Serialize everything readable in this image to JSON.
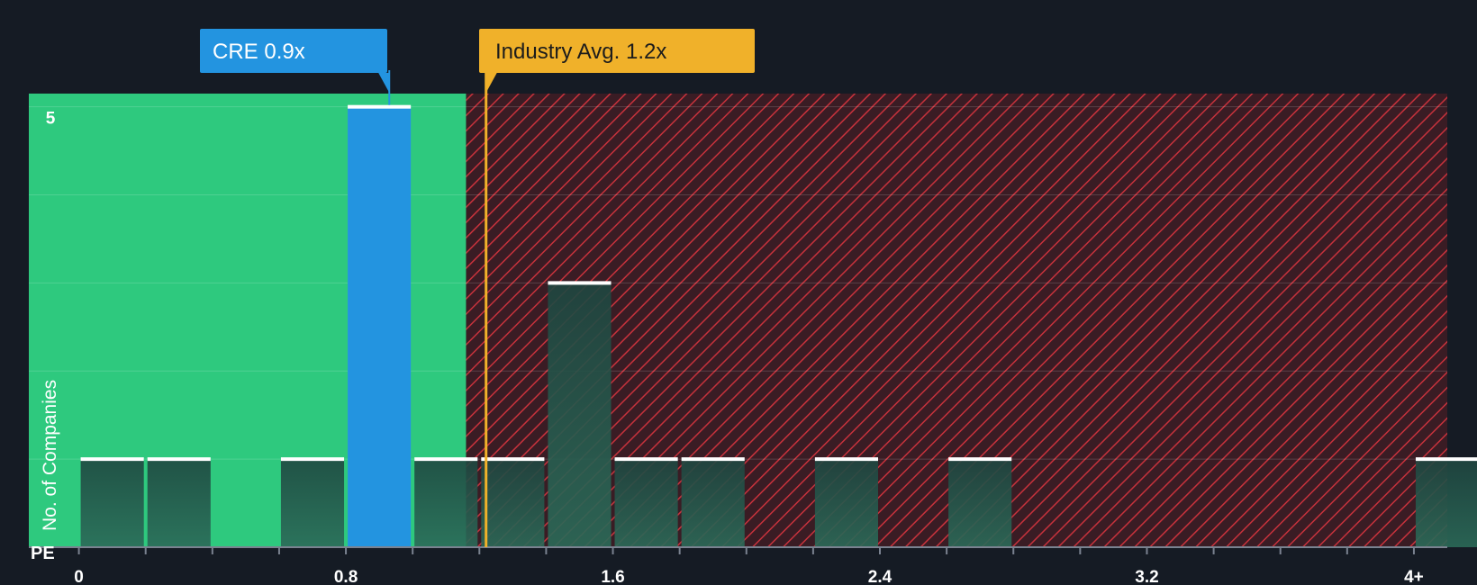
{
  "chart_data": {
    "type": "bar",
    "xlabel": "PE",
    "ylabel": "No. of Companies",
    "x_tick_labels": [
      "0",
      "0.8",
      "1.6",
      "2.4",
      "3.2",
      "4+"
    ],
    "x_tick_values": [
      0,
      0.8,
      1.6,
      2.4,
      3.2,
      4
    ],
    "y_tick_labels": [
      "5"
    ],
    "y_tick_values": [
      5
    ],
    "xlim": [
      -0.15,
      4.1
    ],
    "ylim": [
      0,
      5.15
    ],
    "bin_width": 0.2,
    "bars": [
      {
        "x": 0.0,
        "value": 1,
        "highlight": false
      },
      {
        "x": 0.2,
        "value": 1,
        "highlight": false
      },
      {
        "x": 0.6,
        "value": 1,
        "highlight": false
      },
      {
        "x": 0.8,
        "value": 5,
        "highlight": true
      },
      {
        "x": 1.0,
        "value": 1,
        "highlight": false
      },
      {
        "x": 1.2,
        "value": 1,
        "highlight": false
      },
      {
        "x": 1.4,
        "value": 3,
        "highlight": false
      },
      {
        "x": 1.6,
        "value": 1,
        "highlight": false
      },
      {
        "x": 1.8,
        "value": 1,
        "highlight": false
      },
      {
        "x": 2.2,
        "value": 1,
        "highlight": false
      },
      {
        "x": 2.6,
        "value": 1,
        "highlight": false
      },
      {
        "x": 4.0,
        "value": 1,
        "highlight": false
      }
    ],
    "company": {
      "label": "CRE 0.9x",
      "value": 0.93
    },
    "industry": {
      "label": "Industry Avg. 1.2x",
      "value": 1.22
    },
    "fair_zone_max": 1.16,
    "grid": true
  },
  "colors": {
    "background": "#151b24",
    "fair_zone": "#2ec97e",
    "overvalued_zone": "#3a1c24",
    "hatch": "#c8323c",
    "bar": "#1f3a35",
    "bar_highlight": "#2394e0",
    "bar_cap": "#ffffff",
    "industry_line": "#f0b12a",
    "company_callout": "#2394e0",
    "industry_callout": "#f0b12a"
  }
}
